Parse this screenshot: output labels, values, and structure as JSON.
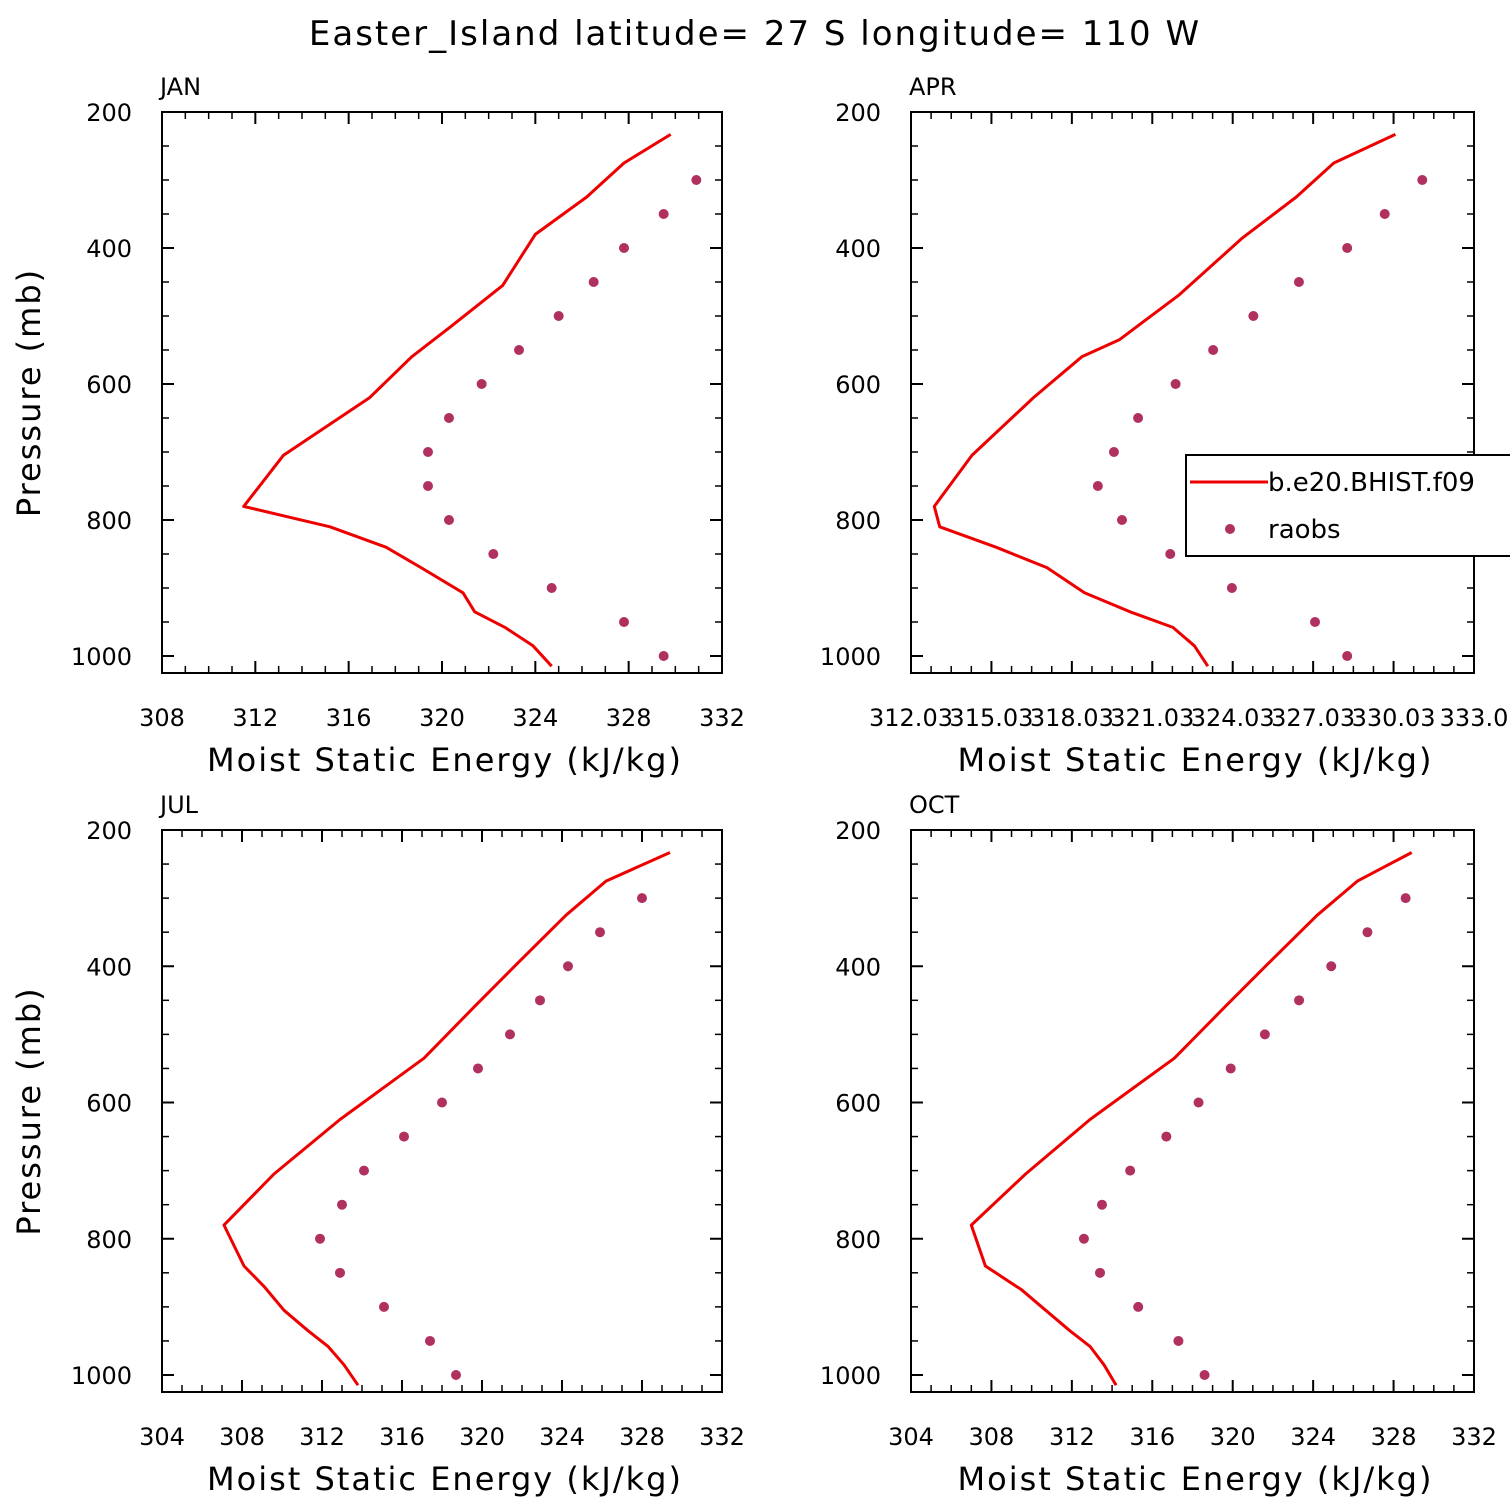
{
  "title": "Easter_Island  latitude= 27 S longitude= 110 W",
  "colors": {
    "model_line": "#ee0000",
    "raobs_point": "#b03060",
    "frame": "#000000"
  },
  "legend": {
    "placement": "right, inside APR panel (clipped by page edge)",
    "entries": [
      "b.e20.BHIST.f09",
      "raobs"
    ]
  },
  "chart_data": [
    {
      "type": "line",
      "panel": "JAN",
      "xlabel": "Moist Static Energy (kJ/kg)",
      "ylabel": "Pressure (mb)",
      "xlim": [
        308,
        332
      ],
      "ylim": [
        1025,
        200
      ],
      "y_inverted": true,
      "xticks": [
        308,
        312,
        316,
        320,
        324,
        328,
        332
      ],
      "xtick_labels": [
        "308",
        "312",
        "316",
        "320",
        "324",
        "328",
        "332"
      ],
      "yticks": [
        200,
        400,
        600,
        800,
        1000
      ],
      "ytick_labels": [
        "200",
        "400",
        "600",
        "800",
        "1000"
      ],
      "series": [
        {
          "name": "b.e20.BHIST.f09",
          "kind": "line",
          "x": [
            324.7,
            323.9,
            322.7,
            321.4,
            320.9,
            319.1,
            317.6,
            315.2,
            311.5,
            313.2,
            316.9,
            318.7,
            320.4,
            322.6,
            324.0,
            326.2,
            327.8,
            329.8
          ],
          "y": [
            1015,
            985,
            958,
            935,
            907,
            870,
            840,
            810,
            780,
            705,
            620,
            560,
            515,
            455,
            380,
            325,
            275,
            233
          ]
        },
        {
          "name": "raobs",
          "kind": "points",
          "x": [
            329.5,
            327.8,
            324.7,
            322.2,
            320.3,
            319.4,
            319.4,
            320.3,
            321.7,
            323.3,
            325.0,
            326.5,
            327.8,
            329.5,
            330.9
          ],
          "y": [
            1000,
            950,
            900,
            850,
            800,
            750,
            700,
            650,
            600,
            550,
            500,
            450,
            400,
            350,
            300
          ]
        }
      ]
    },
    {
      "type": "line",
      "panel": "APR",
      "xlabel": "Moist Static Energy (kJ/kg)",
      "ylabel": "",
      "xlim": [
        312.03,
        333.03
      ],
      "ylim": [
        1025,
        200
      ],
      "y_inverted": true,
      "xticks": [
        312.03,
        315.03,
        318.03,
        321.03,
        324.03,
        327.03,
        330.03,
        333.03
      ],
      "xtick_labels": [
        "312.03",
        "315.03",
        "318.03",
        "321.03",
        "324.03",
        "327.03",
        "330.03",
        "333.0"
      ],
      "yticks": [
        200,
        400,
        600,
        800,
        1000
      ],
      "ytick_labels": [
        "200",
        "400",
        "600",
        "800",
        "1000"
      ],
      "series": [
        {
          "name": "b.e20.BHIST.f09",
          "kind": "line",
          "x": [
            323.1,
            322.6,
            321.8,
            320.2,
            318.5,
            317.1,
            315.2,
            313.1,
            312.9,
            314.3,
            316.6,
            318.4,
            319.8,
            322.0,
            324.4,
            326.4,
            327.8,
            330.1
          ],
          "y": [
            1015,
            985,
            958,
            935,
            907,
            870,
            840,
            810,
            780,
            705,
            620,
            560,
            535,
            470,
            385,
            325,
            275,
            233
          ]
        },
        {
          "name": "raobs",
          "kind": "points",
          "x": [
            328.3,
            327.1,
            324.0,
            321.7,
            319.9,
            319.0,
            319.6,
            320.5,
            321.9,
            323.3,
            324.8,
            326.5,
            328.3,
            329.7,
            331.1
          ],
          "y": [
            1000,
            950,
            900,
            850,
            800,
            750,
            700,
            650,
            600,
            550,
            500,
            450,
            400,
            350,
            300
          ]
        }
      ]
    },
    {
      "type": "line",
      "panel": "JUL",
      "xlabel": "Moist Static Energy (kJ/kg)",
      "ylabel": "Pressure (mb)",
      "xlim": [
        304,
        332
      ],
      "ylim": [
        1025,
        200
      ],
      "y_inverted": true,
      "xticks": [
        304,
        308,
        312,
        316,
        320,
        324,
        328,
        332
      ],
      "xtick_labels": [
        "304",
        "308",
        "312",
        "316",
        "320",
        "324",
        "328",
        "332"
      ],
      "yticks": [
        200,
        400,
        600,
        800,
        1000
      ],
      "ytick_labels": [
        "200",
        "400",
        "600",
        "800",
        "1000"
      ],
      "series": [
        {
          "name": "b.e20.BHIST.f09",
          "kind": "line",
          "x": [
            313.8,
            313.1,
            312.3,
            311.3,
            310.1,
            309.1,
            308.1,
            307.1,
            309.6,
            312.9,
            317.1,
            319.6,
            321.8,
            324.2,
            326.2,
            329.4
          ],
          "y": [
            1015,
            985,
            958,
            935,
            905,
            870,
            840,
            780,
            705,
            625,
            535,
            460,
            395,
            325,
            275,
            233
          ]
        },
        {
          "name": "raobs",
          "kind": "points",
          "x": [
            318.7,
            317.4,
            315.1,
            312.9,
            311.9,
            313.0,
            314.1,
            316.1,
            318.0,
            319.8,
            321.4,
            322.9,
            324.3,
            325.9,
            328.0
          ],
          "y": [
            1000,
            950,
            900,
            850,
            800,
            750,
            700,
            650,
            600,
            550,
            500,
            450,
            400,
            350,
            300
          ]
        }
      ]
    },
    {
      "type": "line",
      "panel": "OCT",
      "xlabel": "Moist Static Energy (kJ/kg)",
      "ylabel": "",
      "xlim": [
        304,
        332
      ],
      "ylim": [
        1025,
        200
      ],
      "y_inverted": true,
      "xticks": [
        304,
        308,
        312,
        316,
        320,
        324,
        328,
        332
      ],
      "xtick_labels": [
        "304",
        "308",
        "312",
        "316",
        "320",
        "324",
        "328",
        "332"
      ],
      "yticks": [
        200,
        400,
        600,
        800,
        1000
      ],
      "ytick_labels": [
        "200",
        "400",
        "600",
        "800",
        "1000"
      ],
      "series": [
        {
          "name": "b.e20.BHIST.f09",
          "kind": "line",
          "x": [
            314.2,
            313.6,
            312.9,
            311.9,
            310.7,
            309.5,
            307.7,
            307.0,
            309.7,
            312.9,
            317.1,
            319.6,
            321.8,
            324.2,
            326.2,
            328.9
          ],
          "y": [
            1015,
            985,
            958,
            935,
            905,
            875,
            840,
            780,
            705,
            625,
            535,
            460,
            395,
            325,
            275,
            233
          ]
        },
        {
          "name": "raobs",
          "kind": "points",
          "x": [
            318.6,
            317.3,
            315.3,
            313.4,
            312.6,
            313.5,
            314.9,
            316.7,
            318.3,
            319.9,
            321.6,
            323.3,
            324.9,
            326.7,
            328.6
          ],
          "y": [
            1000,
            950,
            900,
            850,
            800,
            750,
            700,
            650,
            600,
            550,
            500,
            450,
            400,
            350,
            300
          ]
        }
      ]
    }
  ]
}
